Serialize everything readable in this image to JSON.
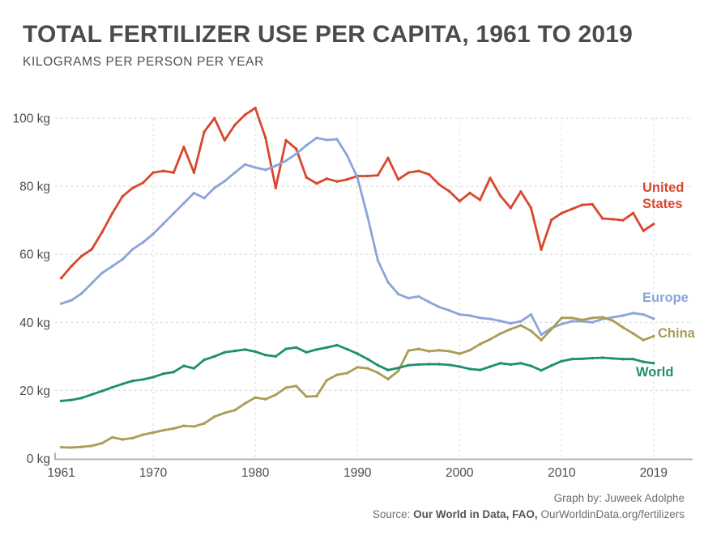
{
  "header": {
    "title": "TOTAL FERTILIZER USE PER CAPITA, 1961 TO 2019",
    "subtitle": "KILOGRAMS PER PERSON PER YEAR"
  },
  "credits": {
    "graph_by": "Graph by: Juweek Adolphe",
    "source_prefix": "Source: ",
    "source_bold": "Our World in Data, FAO,",
    "source_suffix": " OurWorldinData.org/fertilizers"
  },
  "colors": {
    "united_states": "#d8472e",
    "europe": "#8ca4dc",
    "china": "#ab9c55",
    "world": "#1f8f6d",
    "title_text": "#4b4b4b",
    "axis_text": "#4d4d4d",
    "gridline": "#dcdcdc",
    "axis_line": "#b3b3b3",
    "credits_text": "#6e6e6e"
  },
  "chart_data": {
    "type": "line",
    "title": "TOTAL FERTILIZER USE PER CAPITA, 1961 TO 2019",
    "subtitle": "KILOGRAMS PER PERSON PER YEAR",
    "xlabel": "",
    "ylabel": "kilograms per person per year",
    "unit": "kg",
    "xlim": [
      1961,
      2019
    ],
    "ylim": [
      0,
      105
    ],
    "x_ticks": [
      1961,
      1970,
      1980,
      1990,
      2000,
      2010,
      2019
    ],
    "y_ticks": [
      0,
      20,
      40,
      60,
      80,
      100
    ],
    "y_tick_labels": [
      "0 kg",
      "20 kg",
      "40 kg",
      "60 kg",
      "80 kg",
      "100 kg"
    ],
    "grid": true,
    "legend_position": "right of line ends",
    "x": [
      1961,
      1962,
      1963,
      1964,
      1965,
      1966,
      1967,
      1968,
      1969,
      1970,
      1971,
      1972,
      1973,
      1974,
      1975,
      1976,
      1977,
      1978,
      1979,
      1980,
      1981,
      1982,
      1983,
      1984,
      1985,
      1986,
      1987,
      1988,
      1989,
      1990,
      1991,
      1992,
      1993,
      1994,
      1995,
      1996,
      1997,
      1998,
      1999,
      2000,
      2001,
      2002,
      2003,
      2004,
      2005,
      2006,
      2007,
      2008,
      2009,
      2010,
      2011,
      2012,
      2013,
      2014,
      2015,
      2016,
      2017,
      2018,
      2019
    ],
    "series": [
      {
        "name": "United States",
        "label_lines": [
          "United",
          "States"
        ],
        "color": "#d8472e",
        "values": [
          53,
          56.5,
          59.5,
          61.5,
          66.5,
          72,
          77,
          79.5,
          81,
          84,
          84.5,
          84,
          91.5,
          84,
          96,
          100,
          93.5,
          98,
          101,
          103,
          94.3,
          79.5,
          93.5,
          91,
          82.6,
          80.8,
          82.2,
          81.4,
          82,
          83,
          83,
          83.2,
          88.3,
          82,
          84,
          84.5,
          83.5,
          80.5,
          78.5,
          75.6,
          78,
          76,
          82.4,
          77.2,
          73.6,
          78.4,
          73.6,
          61.4,
          70.1,
          72.1,
          73.3,
          74.5,
          74.7,
          70.5,
          70.3,
          70,
          72.1,
          66.9,
          68.9
        ]
      },
      {
        "name": "Europe",
        "label_lines": [
          "Europe"
        ],
        "color": "#8ca4dc",
        "values": [
          45.5,
          46.5,
          48.5,
          51.5,
          54.5,
          56.5,
          58.5,
          61.5,
          63.5,
          66,
          69,
          72,
          75,
          78,
          76.5,
          79.5,
          81.5,
          84,
          86.4,
          85.5,
          84.8,
          86,
          87.5,
          89.5,
          92,
          94.2,
          93.6,
          93.8,
          89,
          82.5,
          71,
          58.2,
          51.8,
          48.3,
          47.1,
          47.6,
          46,
          44.5,
          43.5,
          42.3,
          42,
          41.3,
          41,
          40.4,
          39.7,
          40.3,
          42.3,
          36.4,
          38.3,
          39.5,
          40.3,
          40.3,
          40,
          41,
          41.5,
          42,
          42.7,
          42.3,
          41.1
        ]
      },
      {
        "name": "China",
        "label_lines": [
          "China"
        ],
        "color": "#ab9c55",
        "values": [
          3.3,
          3.2,
          3.4,
          3.7,
          4.5,
          6.2,
          5.6,
          6,
          7,
          7.6,
          8.3,
          8.8,
          9.6,
          9.4,
          10.3,
          12.3,
          13.4,
          14.2,
          16.2,
          17.9,
          17.4,
          18.7,
          20.8,
          21.3,
          18.2,
          18.3,
          23,
          24.6,
          25.1,
          26.8,
          26.5,
          25.2,
          23.3,
          25.7,
          31.7,
          32.2,
          31.5,
          31.8,
          31.5,
          30.8,
          31.8,
          33.6,
          35,
          36.7,
          38,
          39.1,
          37.5,
          34.8,
          38,
          41.3,
          41.3,
          40.7,
          41.3,
          41.5,
          40.5,
          38.5,
          36.7,
          34.8,
          35.9
        ]
      },
      {
        "name": "World",
        "label_lines": [
          "World"
        ],
        "color": "#1f8f6d",
        "values": [
          16.9,
          17.2,
          17.8,
          18.8,
          19.8,
          20.9,
          21.9,
          22.8,
          23.2,
          23.9,
          24.9,
          25.4,
          27.2,
          26.5,
          29,
          30,
          31.2,
          31.6,
          32,
          31.4,
          30.4,
          30,
          32.2,
          32.6,
          31.2,
          32,
          32.6,
          33.3,
          32.1,
          30.8,
          29.2,
          27.4,
          26,
          26.6,
          27.4,
          27.6,
          27.7,
          27.7,
          27.5,
          27,
          26.3,
          26,
          27,
          28,
          27.6,
          28,
          27.2,
          25.9,
          27.3,
          28.6,
          29.2,
          29.3,
          29.5,
          29.6,
          29.4,
          29.2,
          29.2,
          28.4,
          28
        ]
      }
    ]
  }
}
